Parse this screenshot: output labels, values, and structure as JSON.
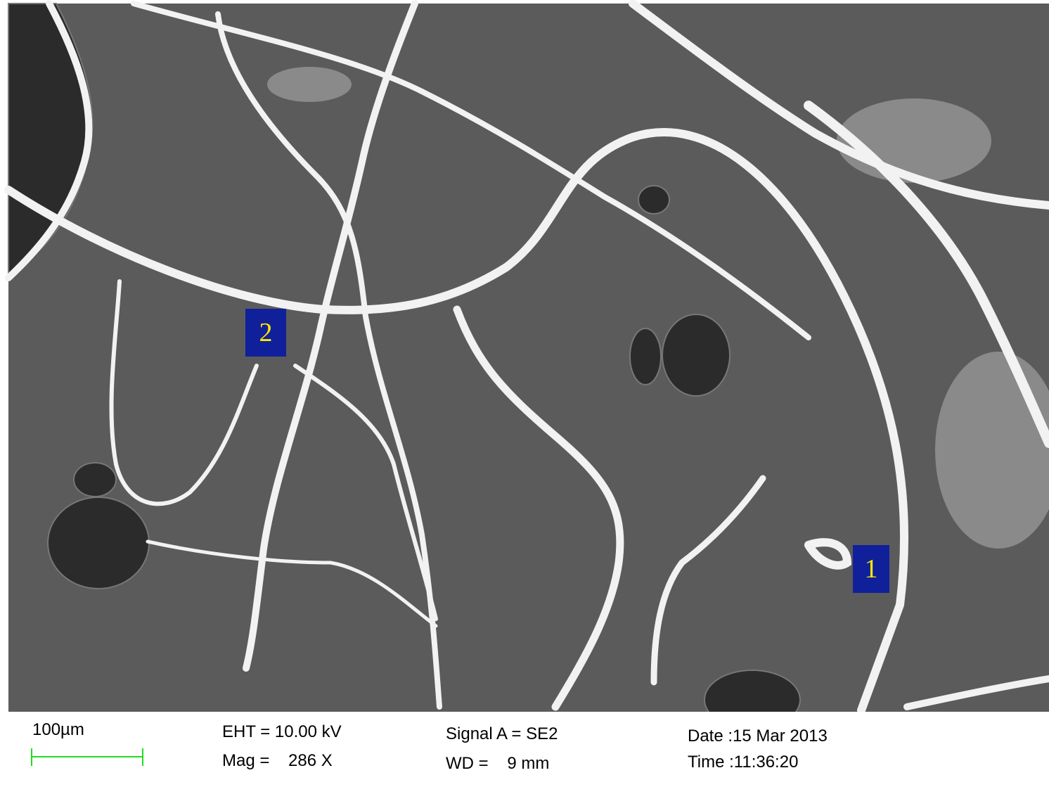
{
  "image": {
    "markers": [
      "2",
      "1"
    ]
  },
  "info_bar": {
    "scale_bar": "100µm",
    "eht": "EHT = 10.00 kV",
    "mag": "Mag =    286 X",
    "signal": "Signal A = SE2",
    "wd": "WD =    9 mm",
    "date": "Date :15 Mar 2013",
    "time": "Time :11:36:20"
  }
}
